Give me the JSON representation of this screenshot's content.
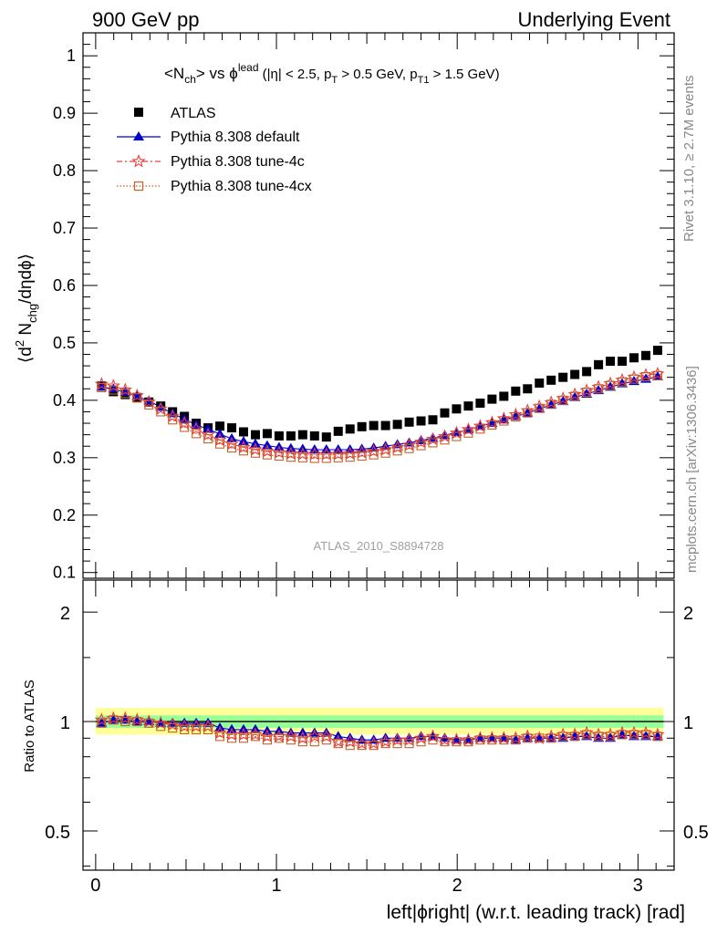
{
  "header": {
    "left": "900 GeV pp",
    "right": "Underlying Event"
  },
  "side_labels": {
    "rivet": "Rivet 3.1.10, ≥ 2.7M events",
    "mcplots": "mcplots.cern.ch [arXiv:1306.3436]"
  },
  "plot_title": {
    "main": "<N",
    "sub1": "ch",
    "mid": "> vs ϕ",
    "sup": "lead",
    "cuts_a": " (|η| < 2.5, p",
    "cuts_sub1": "T",
    "cuts_b": " > 0.5 GeV, p",
    "cuts_sub2": "T1",
    "cuts_c": " > 1.5 GeV)"
  },
  "watermark": "ATLAS_2010_S8894728",
  "colors": {
    "atlas": "#000000",
    "default": "#0000cc",
    "tune4c": "#e8403f",
    "tune4cx": "#c8602a",
    "band_outer": "#ffff99",
    "band_inner": "#99ff99"
  },
  "chart_data": [
    {
      "type": "scatter",
      "ylabel": "⟨d² N_chg/dηdϕ⟩",
      "ylim": [
        0.09,
        1.04
      ],
      "xlim": [
        -0.07,
        3.2
      ],
      "yticks": [
        0.1,
        0.2,
        0.3,
        0.4,
        0.5,
        0.6,
        0.7,
        0.8,
        0.9,
        1
      ],
      "legend": [
        "ATLAS",
        "Pythia 8.308 default",
        "Pythia 8.308 tune-4c",
        "Pythia 8.308 tune-4cx"
      ],
      "legend_position": "top-left",
      "x": [
        0.0327,
        0.0982,
        0.1636,
        0.2291,
        0.2945,
        0.36,
        0.4254,
        0.4909,
        0.5563,
        0.6218,
        0.6872,
        0.7527,
        0.8181,
        0.8836,
        0.949,
        1.0145,
        1.0799,
        1.1454,
        1.2108,
        1.2763,
        1.3417,
        1.4072,
        1.4726,
        1.5381,
        1.6035,
        1.669,
        1.7344,
        1.7999,
        1.8653,
        1.9308,
        1.9962,
        2.0617,
        2.1271,
        2.1926,
        2.258,
        2.3235,
        2.3889,
        2.4544,
        2.5198,
        2.5853,
        2.6507,
        2.7162,
        2.7816,
        2.8471,
        2.9125,
        2.978,
        3.0434,
        3.1089
      ],
      "series": [
        {
          "name": "ATLAS",
          "values": [
            0.425,
            0.415,
            0.41,
            0.405,
            0.397,
            0.39,
            0.38,
            0.372,
            0.36,
            0.352,
            0.355,
            0.352,
            0.345,
            0.34,
            0.342,
            0.338,
            0.338,
            0.34,
            0.338,
            0.336,
            0.346,
            0.35,
            0.354,
            0.356,
            0.356,
            0.358,
            0.362,
            0.364,
            0.366,
            0.378,
            0.385,
            0.39,
            0.395,
            0.402,
            0.407,
            0.416,
            0.42,
            0.43,
            0.435,
            0.44,
            0.445,
            0.45,
            0.462,
            0.468,
            0.468,
            0.474,
            0.478,
            0.487
          ]
        },
        {
          "name": "Pythia 8.308 default",
          "values": [
            0.423,
            0.42,
            0.414,
            0.407,
            0.399,
            0.388,
            0.377,
            0.367,
            0.357,
            0.35,
            0.341,
            0.333,
            0.328,
            0.324,
            0.321,
            0.318,
            0.316,
            0.315,
            0.314,
            0.314,
            0.314,
            0.314,
            0.315,
            0.317,
            0.32,
            0.323,
            0.326,
            0.33,
            0.334,
            0.339,
            0.344,
            0.349,
            0.355,
            0.36,
            0.366,
            0.372,
            0.378,
            0.385,
            0.392,
            0.398,
            0.405,
            0.411,
            0.417,
            0.423,
            0.429,
            0.433,
            0.437,
            0.441
          ]
        },
        {
          "name": "Pythia 8.308 tune-4c",
          "values": [
            0.428,
            0.425,
            0.418,
            0.408,
            0.397,
            0.385,
            0.372,
            0.36,
            0.35,
            0.34,
            0.331,
            0.324,
            0.318,
            0.314,
            0.311,
            0.309,
            0.307,
            0.306,
            0.306,
            0.306,
            0.306,
            0.307,
            0.309,
            0.311,
            0.314,
            0.318,
            0.322,
            0.327,
            0.332,
            0.337,
            0.343,
            0.349,
            0.355,
            0.361,
            0.368,
            0.375,
            0.382,
            0.389,
            0.396,
            0.403,
            0.41,
            0.417,
            0.423,
            0.429,
            0.435,
            0.44,
            0.444,
            0.446
          ]
        },
        {
          "name": "Pythia 8.308 tune-4cx",
          "values": [
            0.422,
            0.418,
            0.412,
            0.404,
            0.392,
            0.38,
            0.366,
            0.353,
            0.342,
            0.333,
            0.324,
            0.317,
            0.312,
            0.308,
            0.305,
            0.303,
            0.301,
            0.3,
            0.299,
            0.299,
            0.3,
            0.301,
            0.303,
            0.305,
            0.308,
            0.312,
            0.316,
            0.321,
            0.326,
            0.331,
            0.337,
            0.343,
            0.35,
            0.357,
            0.364,
            0.371,
            0.378,
            0.386,
            0.393,
            0.4,
            0.407,
            0.414,
            0.42,
            0.426,
            0.432,
            0.437,
            0.441,
            0.443
          ]
        }
      ]
    },
    {
      "type": "scatter",
      "ylabel": "Ratio to ATLAS",
      "xlabel": "left|ϕright| (w.r.t. leading track) [rad]",
      "ylim": [
        0.39,
        2.45
      ],
      "log_y": true,
      "yticks": [
        0.5,
        1,
        2
      ],
      "xlim": [
        -0.07,
        3.2
      ],
      "xticks": [
        0,
        1,
        2,
        3
      ],
      "band_outer": [
        0.92,
        1.09
      ],
      "band_inner": [
        0.96,
        1.04
      ],
      "x": [
        0.0327,
        0.0982,
        0.1636,
        0.2291,
        0.2945,
        0.36,
        0.4254,
        0.4909,
        0.5563,
        0.6218,
        0.6872,
        0.7527,
        0.8181,
        0.8836,
        0.949,
        1.0145,
        1.0799,
        1.1454,
        1.2108,
        1.2763,
        1.3417,
        1.4072,
        1.4726,
        1.5381,
        1.6035,
        1.669,
        1.7344,
        1.7999,
        1.8653,
        1.9308,
        1.9962,
        2.0617,
        2.1271,
        2.1926,
        2.258,
        2.3235,
        2.3889,
        2.4544,
        2.5198,
        2.5853,
        2.6507,
        2.7162,
        2.7816,
        2.8471,
        2.9125,
        2.978,
        3.0434,
        3.1089
      ],
      "series": [
        {
          "name": "Pythia 8.308 default",
          "values": [
            0.99,
            1.01,
            1.01,
            1.0,
            1.0,
            0.99,
            0.99,
            0.99,
            0.99,
            0.99,
            0.96,
            0.95,
            0.95,
            0.95,
            0.94,
            0.94,
            0.93,
            0.93,
            0.93,
            0.93,
            0.91,
            0.9,
            0.89,
            0.89,
            0.9,
            0.9,
            0.9,
            0.91,
            0.91,
            0.9,
            0.89,
            0.89,
            0.9,
            0.9,
            0.9,
            0.89,
            0.9,
            0.9,
            0.9,
            0.9,
            0.91,
            0.91,
            0.9,
            0.9,
            0.92,
            0.91,
            0.91,
            0.91
          ]
        },
        {
          "name": "Pythia 8.308 tune-4c",
          "values": [
            1.01,
            1.02,
            1.02,
            1.01,
            1.0,
            0.99,
            0.98,
            0.97,
            0.97,
            0.97,
            0.93,
            0.92,
            0.92,
            0.92,
            0.91,
            0.91,
            0.91,
            0.9,
            0.91,
            0.91,
            0.88,
            0.88,
            0.87,
            0.87,
            0.88,
            0.89,
            0.89,
            0.9,
            0.91,
            0.89,
            0.89,
            0.89,
            0.9,
            0.9,
            0.9,
            0.9,
            0.91,
            0.9,
            0.91,
            0.92,
            0.92,
            0.93,
            0.92,
            0.92,
            0.93,
            0.93,
            0.93,
            0.92
          ]
        },
        {
          "name": "Pythia 8.308 tune-4cx",
          "values": [
            0.99,
            1.01,
            1.0,
            1.0,
            0.99,
            0.97,
            0.96,
            0.95,
            0.95,
            0.95,
            0.91,
            0.9,
            0.9,
            0.91,
            0.89,
            0.9,
            0.89,
            0.88,
            0.88,
            0.89,
            0.87,
            0.86,
            0.86,
            0.86,
            0.87,
            0.87,
            0.87,
            0.88,
            0.89,
            0.88,
            0.88,
            0.88,
            0.89,
            0.89,
            0.89,
            0.89,
            0.9,
            0.9,
            0.9,
            0.91,
            0.91,
            0.92,
            0.91,
            0.91,
            0.92,
            0.92,
            0.92,
            0.91
          ]
        }
      ]
    }
  ]
}
